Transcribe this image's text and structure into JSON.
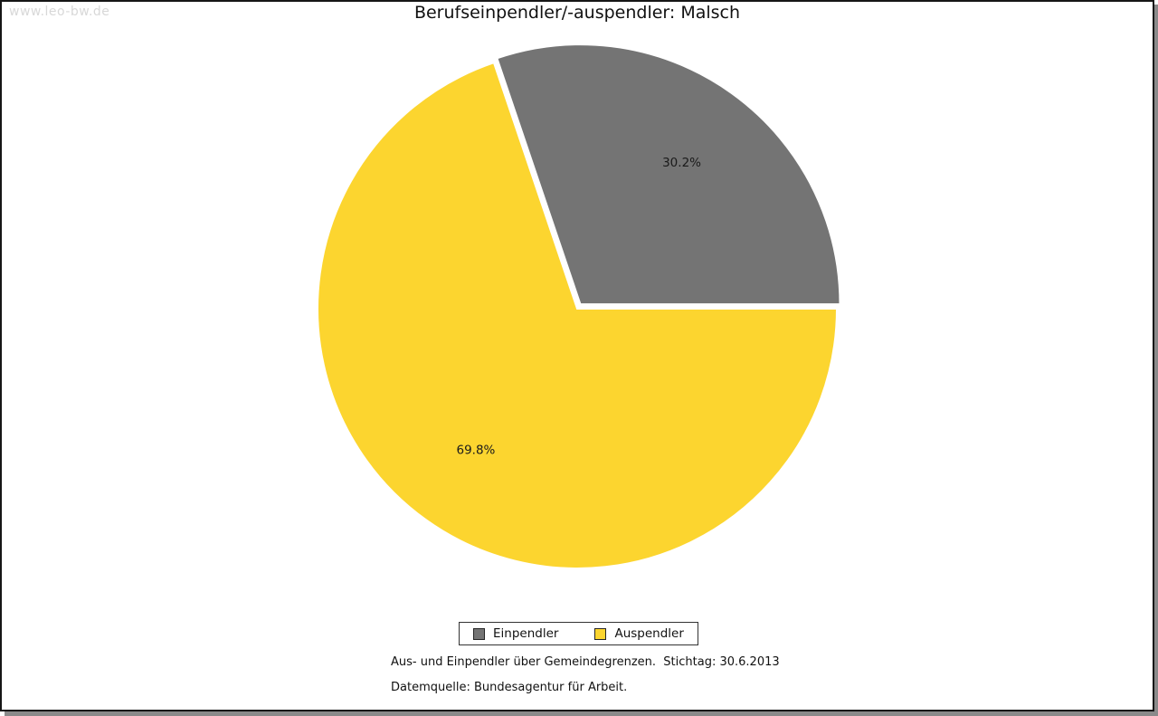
{
  "watermark": "www.leo-bw.de",
  "header": {
    "title": "Berufseinpendler/-auspendler: Malsch"
  },
  "chart_data": {
    "type": "pie",
    "title": "Berufseinpendler/-auspendler: Malsch",
    "slices": [
      {
        "label": "Einpendler",
        "value_pct": 30.2,
        "display_label": "30.2%",
        "color": "#747474",
        "exploded": true
      },
      {
        "label": "Auspendler",
        "value_pct": 69.8,
        "display_label": "69.8%",
        "color": "#FCD52F",
        "exploded": false
      }
    ],
    "start_angle_deg": 0,
    "direction": "counterclockwise",
    "slice_border_color": "#FFFFFF",
    "legend_position": "bottom"
  },
  "legend": {
    "items": [
      {
        "label": "Einpendler",
        "color": "#747474"
      },
      {
        "label": "Auspendler",
        "color": "#FCD52F"
      }
    ]
  },
  "footer": {
    "line1": "Aus- und Einpendler über Gemeindegrenzen.  Stichtag: 30.6.2013",
    "line2": "Datemquelle: Bundesagentur für Arbeit."
  }
}
